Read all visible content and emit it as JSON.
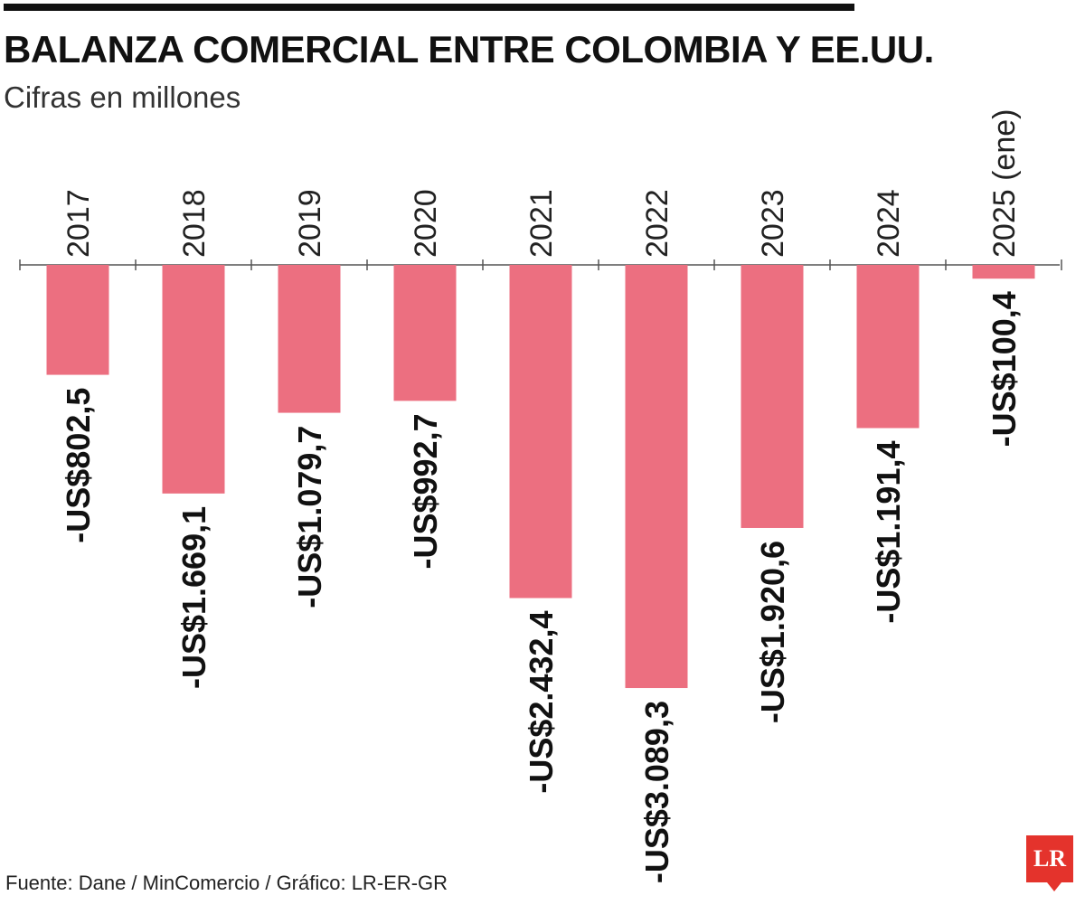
{
  "header": {
    "title": "BALANZA COMERCIAL ENTRE COLOMBIA Y EE.UU.",
    "subtitle": "Cifras en millones"
  },
  "footer": {
    "source": "Fuente: Dane / MinComercio / Gráfico: LR-ER-GR"
  },
  "logo": {
    "text": "LR"
  },
  "colors": {
    "bar": "#ec6f80",
    "axis": "#555555",
    "text": "#111111",
    "logo": "#e4332c"
  },
  "chart_data": {
    "type": "bar",
    "title": "BALANZA COMERCIAL ENTRE COLOMBIA Y EE.UU.",
    "subtitle": "Cifras en millones",
    "xlabel": "",
    "ylabel": "",
    "categories": [
      "2017",
      "2018",
      "2019",
      "2020",
      "2021",
      "2022",
      "2023",
      "2024",
      "2025 (ene)"
    ],
    "values": [
      -802.5,
      -1669.1,
      -1079.7,
      -992.7,
      -2432.4,
      -3089.3,
      -1920.6,
      -1191.4,
      -100.4
    ],
    "data_labels": [
      "-US$802,5",
      "-US$1.669,1",
      "-US$1.079,7",
      "-US$992,7",
      "-US$2.432,4",
      "-US$3.089,3",
      "-US$1.920,6",
      "-US$1.191,4",
      "-US$100,4"
    ],
    "ylim": [
      -3200,
      0
    ],
    "grid": false,
    "legend": "none"
  }
}
